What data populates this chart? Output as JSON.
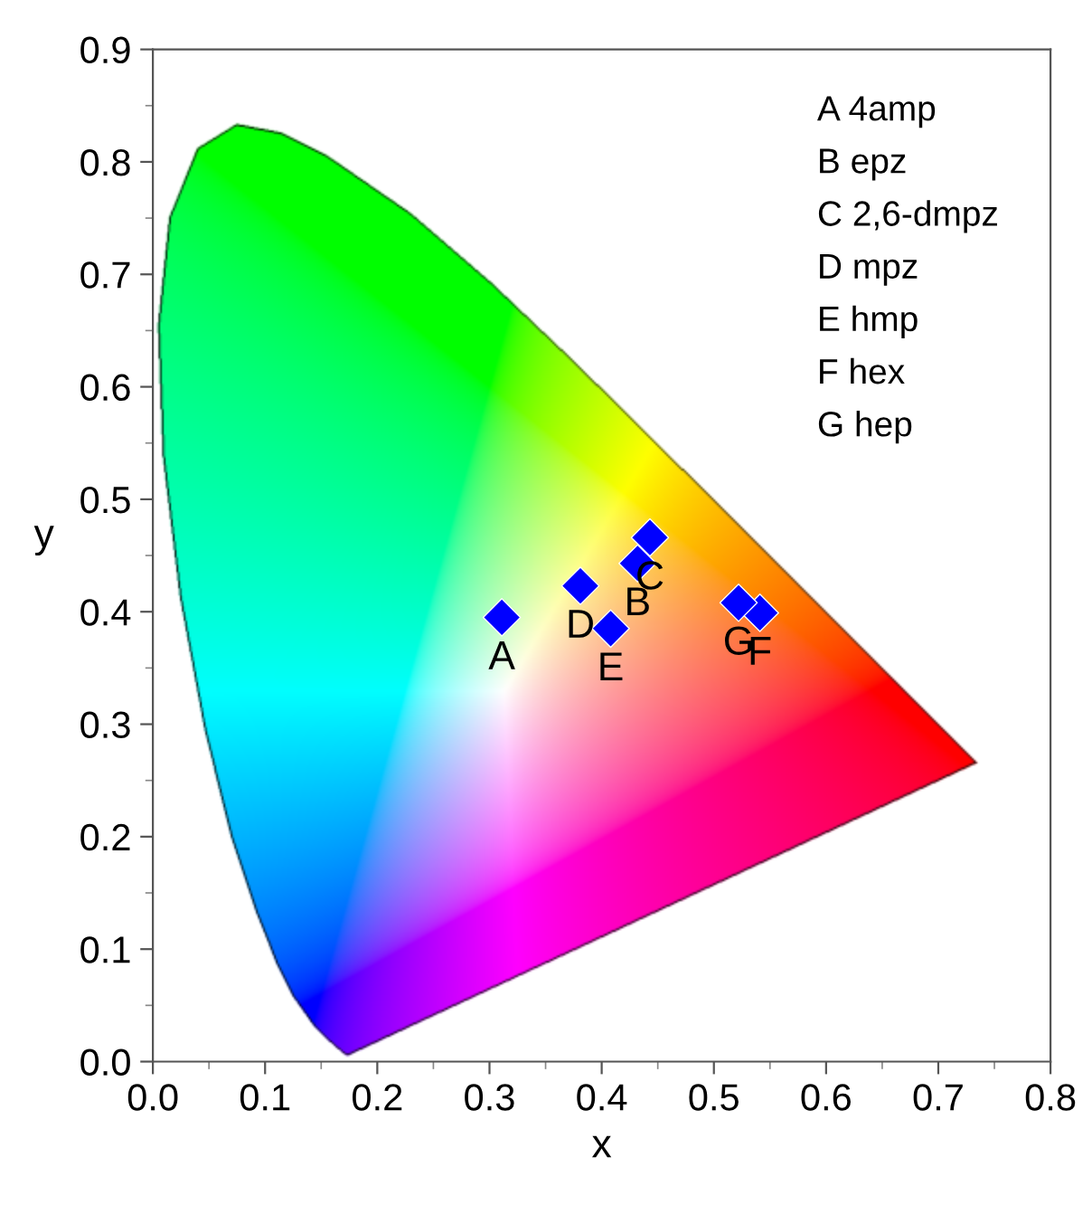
{
  "chart_data": {
    "type": "scatter",
    "xlabel": "x",
    "ylabel": "y",
    "x": [
      0.311,
      0.432,
      0.443,
      0.381,
      0.408,
      0.541,
      0.522
    ],
    "series": [
      {
        "color": "#0000ff",
        "values": [
          0.395,
          0.443,
          0.466,
          0.423,
          0.385,
          0.399,
          0.408
        ]
      }
    ],
    "marker": "diamond",
    "grid": false,
    "legend": false,
    "xlim": [
      0.0,
      0.8
    ],
    "xticks": [
      {
        "value": 0.0,
        "label": "0.0"
      },
      0.1,
      0.2,
      0.3,
      0.4,
      0.5,
      0.6,
      0.7,
      0.8
    ],
    "ylim": [
      0.0,
      0.9
    ],
    "yticks": [
      {
        "value": 0.0,
        "label": "0.0"
      },
      0.1,
      0.2,
      0.3,
      0.4,
      0.5,
      0.6,
      0.7,
      0.8,
      0.9
    ],
    "annotations": [
      {
        "text": "A",
        "x": 0.311,
        "y": 0.395
      },
      {
        "text": "B",
        "x": 0.432,
        "y": 0.443
      },
      {
        "text": "C",
        "x": 0.443,
        "y": 0.466
      },
      {
        "text": "D",
        "x": 0.381,
        "y": 0.423
      },
      {
        "text": "E",
        "x": 0.408,
        "y": 0.385
      },
      {
        "text": "F",
        "x": 0.541,
        "y": 0.399
      },
      {
        "text": "G",
        "x": 0.522,
        "y": 0.408
      },
      "A 4amp",
      "B epz",
      "C 2,6-dmpz",
      "D mpz",
      "E hmp",
      "F hex",
      "G hep"
    ]
  }
}
